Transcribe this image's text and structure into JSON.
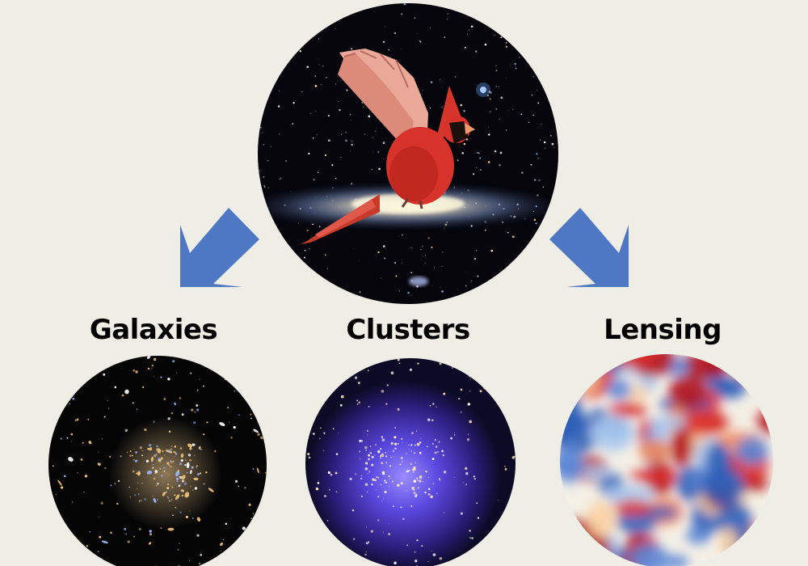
{
  "diagram": {
    "labels": {
      "galaxies": "Galaxies",
      "clusters": "Clusters",
      "lensing": "Lensing"
    },
    "colors": {
      "background": "#eeede6",
      "arrow": "#4f78c4",
      "space": "#06060c",
      "cardinal": "#d8332b",
      "cluster_glow": "#6b5cff",
      "lensing_red": "#b3121b",
      "lensing_blue": "#2f5fb8",
      "lensing_light": "#f4f0e6"
    },
    "icons": [
      "arrow-down-left-icon",
      "arrow-down-right-icon"
    ]
  }
}
